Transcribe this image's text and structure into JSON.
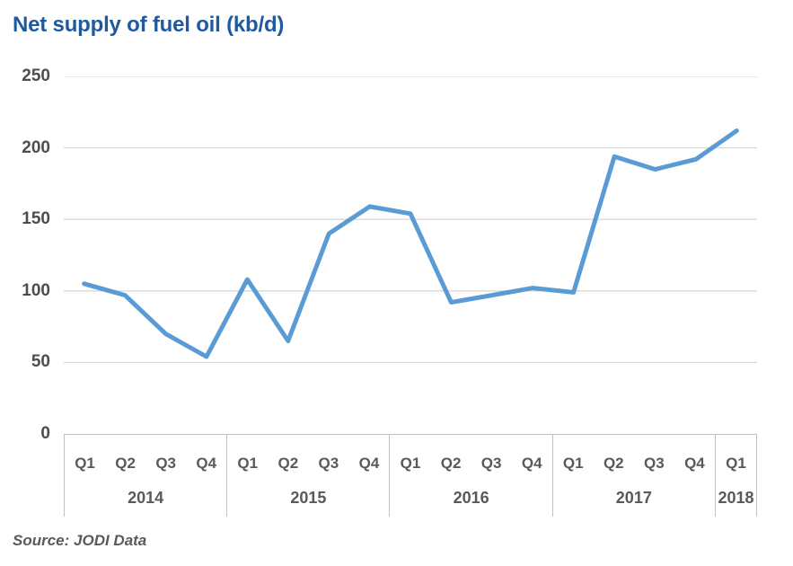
{
  "title": "Net supply of fuel oil (kb/d)",
  "source": "Source: JODI Data",
  "colors": {
    "title": "#1e5a9e",
    "line": "#5b9bd5",
    "grid": "#d9d9d9",
    "axis": "#bfbfbf",
    "label": "#595959"
  },
  "chart_data": {
    "type": "line",
    "title": "Net supply of fuel oil (kb/d)",
    "xlabel": "",
    "ylabel": "",
    "ylim": [
      0,
      250
    ],
    "yticks": [
      250,
      200,
      150,
      100,
      50,
      0
    ],
    "grid": "horizontal",
    "legend": "none",
    "x_groups": [
      {
        "year": "2014",
        "quarters": [
          "Q1",
          "Q2",
          "Q3",
          "Q4"
        ]
      },
      {
        "year": "2015",
        "quarters": [
          "Q1",
          "Q2",
          "Q3",
          "Q4"
        ]
      },
      {
        "year": "2016",
        "quarters": [
          "Q1",
          "Q2",
          "Q3",
          "Q4"
        ]
      },
      {
        "year": "2017",
        "quarters": [
          "Q1",
          "Q2",
          "Q3",
          "Q4"
        ]
      },
      {
        "year": "2018",
        "quarters": [
          "Q1"
        ]
      }
    ],
    "categories": [
      "2014 Q1",
      "2014 Q2",
      "2014 Q3",
      "2014 Q4",
      "2015 Q1",
      "2015 Q2",
      "2015 Q3",
      "2015 Q4",
      "2016 Q1",
      "2016 Q2",
      "2016 Q3",
      "2016 Q4",
      "2017 Q1",
      "2017 Q2",
      "2017 Q3",
      "2017 Q4",
      "2018 Q1"
    ],
    "series": [
      {
        "name": "Net supply of fuel oil (kb/d)",
        "values": [
          105,
          97,
          70,
          54,
          108,
          65,
          140,
          159,
          154,
          92,
          97,
          102,
          99,
          194,
          185,
          192,
          212
        ]
      }
    ],
    "source": "Source: JODI Data"
  }
}
